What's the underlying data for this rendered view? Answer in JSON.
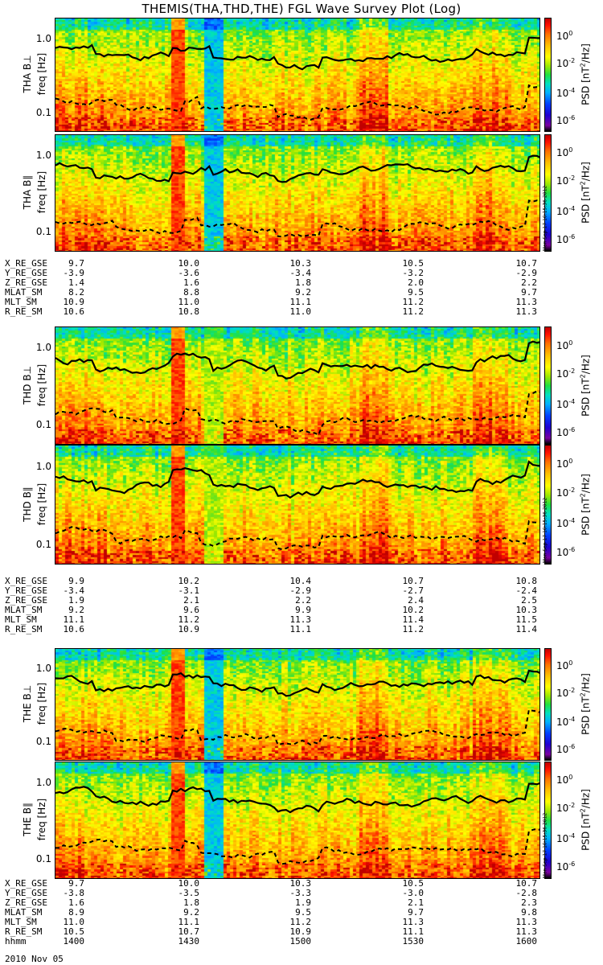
{
  "title": "THEMIS(THA,THD,THE) FGL Wave Survey Plot (Log)",
  "colorbar": {
    "labels": [
      "10^0",
      "10^-2",
      "10^-4",
      "10^-6"
    ],
    "unit": "PSD [nT^2/Hz]"
  },
  "stamp": "Mon Sep 17 10:15:36 2012",
  "date": "2010 Nov 05",
  "chart_data": [
    {
      "type": "heatmap",
      "ylabel": "THA B⊥",
      "yunit": "freq [Hz]",
      "yscale": "log",
      "yticks": [
        "1.0",
        "0.1"
      ],
      "x_range": [
        "1400",
        "1600"
      ],
      "zunit": "PSD [nT^2/Hz]",
      "zscale": "log",
      "zticks": [
        "10^0",
        "10^-2",
        "10^-4",
        "10^-6"
      ],
      "solid_line_label": "",
      "dashed_line_label": ""
    },
    {
      "type": "heatmap",
      "ylabel": "THA B∥",
      "yunit": "freq [Hz]",
      "yscale": "log",
      "yticks": [
        "1.0",
        "0.1"
      ],
      "x_range": [
        "1400",
        "1600"
      ]
    },
    {
      "type": "heatmap",
      "ylabel": "THD B⊥",
      "yunit": "freq [Hz]",
      "yscale": "log",
      "yticks": [
        "1.0",
        "0.1"
      ],
      "x_range": [
        "1400",
        "1600"
      ]
    },
    {
      "type": "heatmap",
      "ylabel": "THD B∥",
      "yunit": "freq [Hz]",
      "yscale": "log",
      "yticks": [
        "1.0",
        "0.1"
      ],
      "x_range": [
        "1400",
        "1600"
      ]
    },
    {
      "type": "heatmap",
      "ylabel": "THE B⊥",
      "yunit": "freq [Hz]",
      "yscale": "log",
      "yticks": [
        "1.0",
        "0.1"
      ],
      "x_range": [
        "1400",
        "1600"
      ]
    },
    {
      "type": "heatmap",
      "ylabel": "THE B∥",
      "yunit": "freq [Hz]",
      "yscale": "log",
      "yticks": [
        "1.0",
        "0.1"
      ],
      "x_range": [
        "1400",
        "1600"
      ]
    }
  ],
  "ephemeris": [
    {
      "probe": "THA",
      "rows": [
        {
          "name": "X_RE_GSE",
          "values": [
            "9.7",
            "10.0",
            "10.3",
            "10.5",
            "10.7"
          ]
        },
        {
          "name": "Y_RE_GSE",
          "values": [
            "-3.9",
            "-3.6",
            "-3.4",
            "-3.2",
            "-2.9"
          ]
        },
        {
          "name": "Z_RE_GSE",
          "values": [
            "1.4",
            "1.6",
            "1.8",
            "2.0",
            "2.2"
          ]
        },
        {
          "name": "MLAT_SM",
          "values": [
            "8.2",
            "8.8",
            "9.2",
            "9.5",
            "9.7"
          ]
        },
        {
          "name": "MLT_SM",
          "values": [
            "10.9",
            "11.0",
            "11.1",
            "11.2",
            "11.3"
          ]
        },
        {
          "name": "R_RE_SM",
          "values": [
            "10.6",
            "10.8",
            "11.0",
            "11.2",
            "11.3"
          ]
        }
      ]
    },
    {
      "probe": "THD",
      "rows": [
        {
          "name": "X_RE_GSE",
          "values": [
            "9.9",
            "10.2",
            "10.4",
            "10.7",
            "10.8"
          ]
        },
        {
          "name": "Y_RE_GSE",
          "values": [
            "-3.4",
            "-3.1",
            "-2.9",
            "-2.7",
            "-2.4"
          ]
        },
        {
          "name": "Z_RE_GSE",
          "values": [
            "1.9",
            "2.1",
            "2.2",
            "2.4",
            "2.5"
          ]
        },
        {
          "name": "MLAT_SM",
          "values": [
            "9.2",
            "9.6",
            "9.9",
            "10.2",
            "10.3"
          ]
        },
        {
          "name": "MLT_SM",
          "values": [
            "11.1",
            "11.2",
            "11.3",
            "11.4",
            "11.5"
          ]
        },
        {
          "name": "R_RE_SM",
          "values": [
            "10.6",
            "10.9",
            "11.1",
            "11.2",
            "11.4"
          ]
        }
      ]
    },
    {
      "probe": "THE",
      "rows": [
        {
          "name": "X_RE_GSE",
          "values": [
            "9.7",
            "10.0",
            "10.3",
            "10.5",
            "10.7"
          ]
        },
        {
          "name": "Y_RE_GSE",
          "values": [
            "-3.8",
            "-3.5",
            "-3.3",
            "-3.0",
            "-2.8"
          ]
        },
        {
          "name": "Z_RE_GSE",
          "values": [
            "1.6",
            "1.8",
            "1.9",
            "2.1",
            "2.3"
          ]
        },
        {
          "name": "MLAT_SM",
          "values": [
            "8.9",
            "9.2",
            "9.5",
            "9.7",
            "9.8"
          ]
        },
        {
          "name": "MLT_SM",
          "values": [
            "11.0",
            "11.1",
            "11.2",
            "11.3",
            "11.3"
          ]
        },
        {
          "name": "R_RE_SM",
          "values": [
            "10.5",
            "10.7",
            "10.9",
            "11.1",
            "11.3"
          ]
        },
        {
          "name": "hhmm",
          "values": [
            "1400",
            "1430",
            "1500",
            "1530",
            "1600"
          ]
        }
      ]
    }
  ]
}
